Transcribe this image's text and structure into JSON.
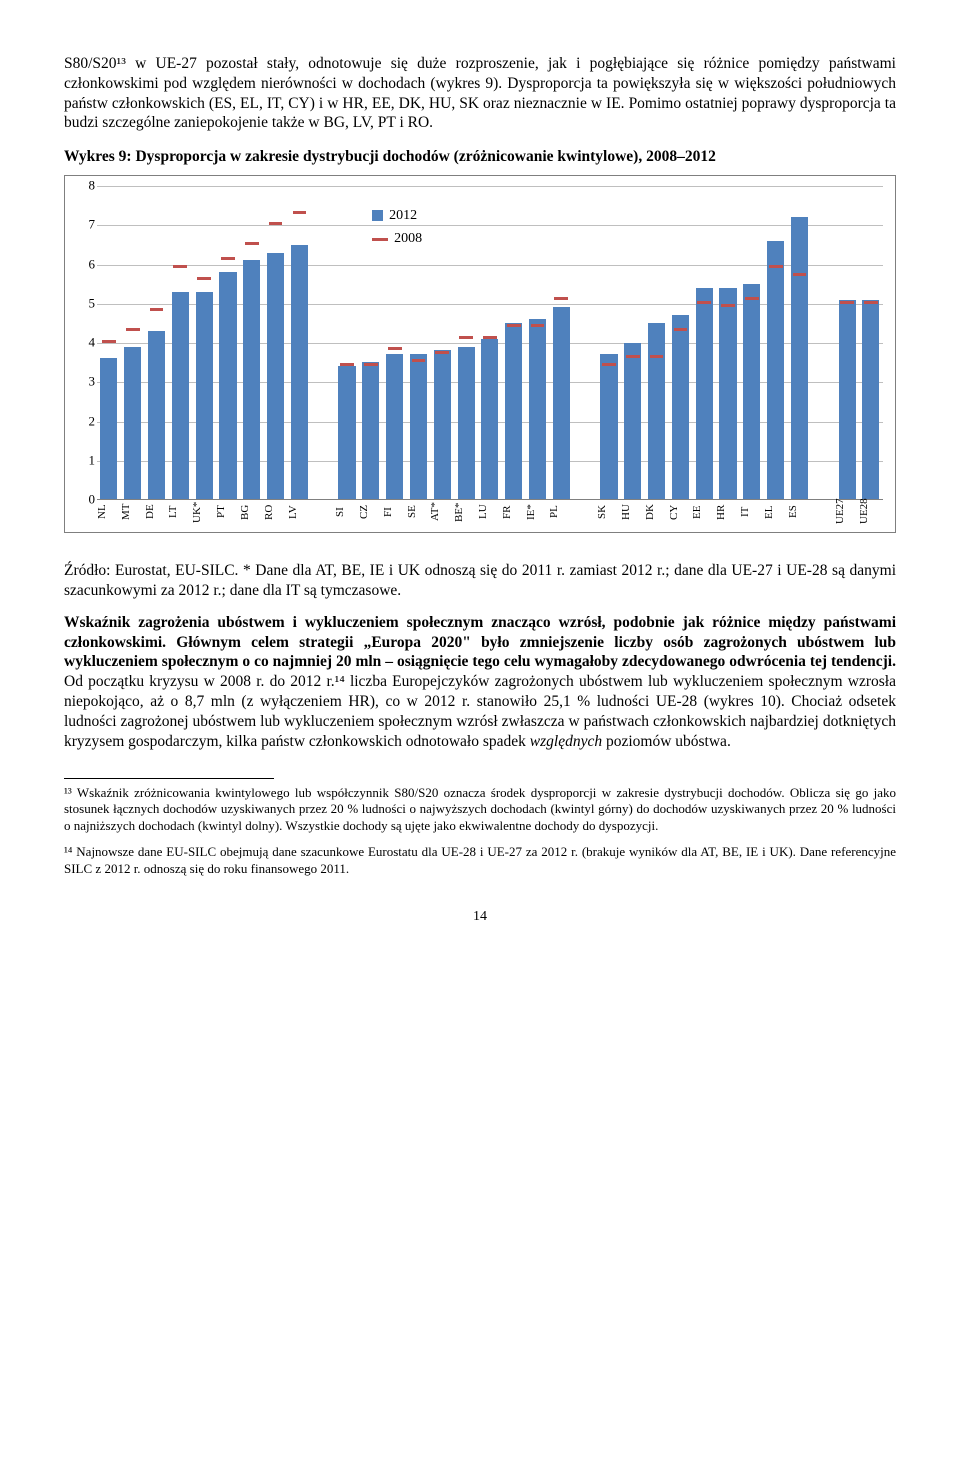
{
  "para1": "S80/S20¹³ w UE-27 pozostał stały, odnotowuje się duże rozproszenie, jak i pogłębiające się różnice pomiędzy państwami członkowskimi pod względem nierówności w dochodach (wykres 9). Dysproporcja ta powiększyła się w większości południowych państw członkowskich (ES, EL, IT, CY) i w HR, EE, DK, HU, SK oraz nieznacznie w IE. Pomimo ostatniej poprawy dysproporcja ta budzi szczególne zaniepokojenie także w BG, LV, PT i RO.",
  "chartTitle": "Wykres 9: Dysproporcja w zakresie dystrybucji dochodów (zróżnicowanie kwintylowe), 2008–2012",
  "chart": {
    "ymax": 8,
    "yticks": [
      0,
      1,
      2,
      3,
      4,
      5,
      6,
      7,
      8
    ],
    "legend2012": "2012",
    "legend2008": "2008",
    "legend_left_pct": 35,
    "legend_top_pct": 6,
    "bar_color": "#4f81bd",
    "dash_color": "#c0504d",
    "grid_color": "#bfbfbf",
    "points": [
      {
        "label": "NL",
        "v2012": 3.6,
        "v2008": 4.0
      },
      {
        "label": "MT",
        "v2012": 3.9,
        "v2008": 4.3
      },
      {
        "label": "DE",
        "v2012": 4.3,
        "v2008": 4.8
      },
      {
        "label": "LT",
        "v2012": 5.3,
        "v2008": 5.9
      },
      {
        "label": "UK*",
        "v2012": 5.3,
        "v2008": 5.6
      },
      {
        "label": "PT",
        "v2012": 5.8,
        "v2008": 6.1
      },
      {
        "label": "BG",
        "v2012": 6.1,
        "v2008": 6.5
      },
      {
        "label": "RO",
        "v2012": 6.3,
        "v2008": 7.0
      },
      {
        "label": "LV",
        "v2012": 6.5,
        "v2008": 7.3
      },
      {
        "label": "",
        "gap": true
      },
      {
        "label": "SI",
        "v2012": 3.4,
        "v2008": 3.4
      },
      {
        "label": "CZ",
        "v2012": 3.5,
        "v2008": 3.4
      },
      {
        "label": "FI",
        "v2012": 3.7,
        "v2008": 3.8
      },
      {
        "label": "SE",
        "v2012": 3.7,
        "v2008": 3.5
      },
      {
        "label": "AT*",
        "v2012": 3.8,
        "v2008": 3.7
      },
      {
        "label": "BE*",
        "v2012": 3.9,
        "v2008": 4.1
      },
      {
        "label": "LU",
        "v2012": 4.1,
        "v2008": 4.1
      },
      {
        "label": "FR",
        "v2012": 4.5,
        "v2008": 4.4
      },
      {
        "label": "IE*",
        "v2012": 4.6,
        "v2008": 4.4
      },
      {
        "label": "PL",
        "v2012": 4.9,
        "v2008": 5.1
      },
      {
        "label": "",
        "gap": true
      },
      {
        "label": "SK",
        "v2012": 3.7,
        "v2008": 3.4
      },
      {
        "label": "HU",
        "v2012": 4.0,
        "v2008": 3.6
      },
      {
        "label": "DK",
        "v2012": 4.5,
        "v2008": 3.6
      },
      {
        "label": "CY",
        "v2012": 4.7,
        "v2008": 4.3
      },
      {
        "label": "EE",
        "v2012": 5.4,
        "v2008": 5.0
      },
      {
        "label": "HR",
        "v2012": 5.4,
        "v2008": 4.9
      },
      {
        "label": "IT",
        "v2012": 5.5,
        "v2008": 5.1
      },
      {
        "label": "EL",
        "v2012": 6.6,
        "v2008": 5.9
      },
      {
        "label": "ES",
        "v2012": 7.2,
        "v2008": 5.7
      },
      {
        "label": "",
        "gap": true
      },
      {
        "label": "UE27",
        "v2012": 5.1,
        "v2008": 5.0
      },
      {
        "label": "UE28",
        "v2012": 5.1,
        "v2008": 5.0
      }
    ]
  },
  "caption": "Źródło: Eurostat, EU-SILC. * Dane dla AT, BE, IE i UK odnoszą się do 2011 r. zamiast 2012 r.; dane dla UE-27 i UE-28 są danymi szacunkowymi za 2012 r.; dane dla IT są tymczasowe.",
  "para2a": "Wskaźnik zagrożenia ubóstwem i wykluczeniem społecznym znacząco wzrósł, podobnie jak różnice między państwami członkowskimi. Głównym celem strategii „Europa 2020\" było zmniejszenie liczby osób zagrożonych ubóstwem lub wykluczeniem społecznym o co najmniej 20 mln – osiągnięcie tego celu wymagałoby zdecydowanego odwrócenia tej tendencji.",
  "para2b": " Od początku kryzysu w 2008 r. do 2012 r.¹⁴ liczba Europejczyków zagrożonych ubóstwem lub wykluczeniem społecznym wzrosła niepokojąco, aż o 8,7 mln (z wyłączeniem HR), co w 2012 r. stanowiło 25,1 % ludności UE-28 (wykres 10). Chociaż odsetek ludności zagrożonej ubóstwem lub wykluczeniem społecznym wzrósł zwłaszcza w państwach członkowskich najbardziej dotkniętych kryzysem gospodarczym, kilka państw członkowskich odnotowało spadek ",
  "para2c": "względnych",
  "para2d": " poziomów ubóstwa.",
  "fn13": "¹³ Wskaźnik zróżnicowania kwintylowego lub współczynnik S80/S20 oznacza środek dysproporcji w zakresie dystrybucji dochodów. Oblicza się go jako stosunek łącznych dochodów uzyskiwanych przez 20 % ludności o najwyższych dochodach (kwintyl górny) do dochodów uzyskiwanych przez 20 % ludności o najniższych dochodach (kwintyl dolny). Wszystkie dochody są ujęte jako ekwiwalentne dochody do dyspozycji.",
  "fn14": "¹⁴ Najnowsze dane EU-SILC obejmują dane szacunkowe Eurostatu dla UE-28 i UE-27 za 2012 r. (brakuje wyników dla AT, BE, IE i UK). Dane referencyjne SILC z 2012 r. odnoszą się do roku finansowego 2011.",
  "pagenum": "14"
}
